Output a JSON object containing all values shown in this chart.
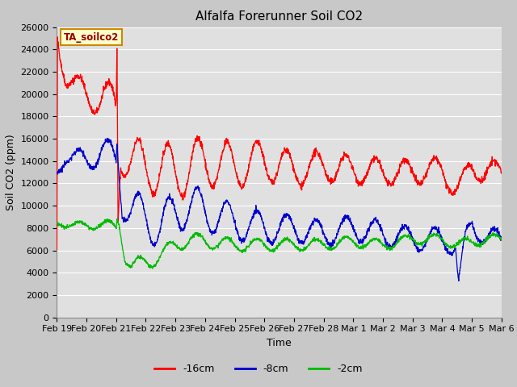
{
  "title": "Alfalfa Forerunner Soil CO2",
  "xlabel": "Time",
  "ylabel": "Soil CO2 (ppm)",
  "ylim": [
    0,
    26000
  ],
  "yticks": [
    0,
    2000,
    4000,
    6000,
    8000,
    10000,
    12000,
    14000,
    16000,
    18000,
    20000,
    22000,
    24000,
    26000
  ],
  "xtick_labels": [
    "Feb 19",
    "Feb 20",
    "Feb 21",
    "Feb 22",
    "Feb 23",
    "Feb 24",
    "Feb 25",
    "Feb 26",
    "Feb 27",
    "Feb 28",
    "Mar 1",
    "Mar 2",
    "Mar 3",
    "Mar 4",
    "Mar 5",
    "Mar 6"
  ],
  "legend_labels": [
    "-16cm",
    "-8cm",
    "-2cm"
  ],
  "legend_colors": [
    "#ff0000",
    "#0000cc",
    "#00bb00"
  ],
  "line_colors": [
    "#ff0000",
    "#0000cc",
    "#00bb00"
  ],
  "annotation_text": "TA_soilco2",
  "annotation_bg": "#ffffcc",
  "annotation_border": "#cc8800",
  "fig_bg": "#c8c8c8",
  "plot_bg": "#e0e0e0",
  "grid_color": "#ffffff",
  "title_fontsize": 11,
  "axis_label_fontsize": 9,
  "tick_fontsize": 8,
  "legend_fontsize": 9,
  "n_points": 2000
}
